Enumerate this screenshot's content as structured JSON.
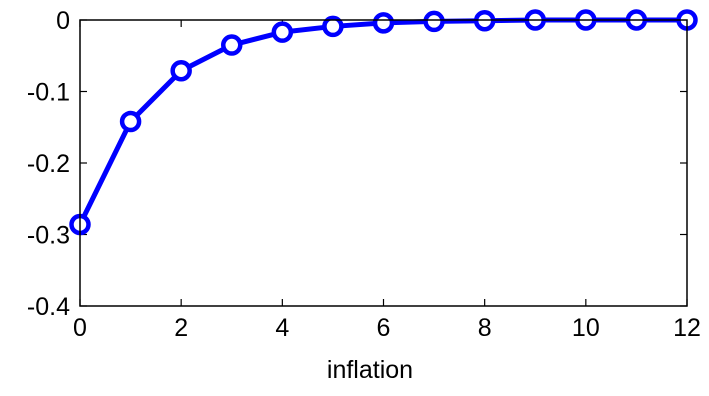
{
  "chart_data": {
    "type": "line",
    "title": "",
    "xlabel": "inflation",
    "ylabel": "",
    "xlim": [
      0,
      12
    ],
    "ylim": [
      -0.4,
      0
    ],
    "xticks": [
      0,
      2,
      4,
      6,
      8,
      10,
      12
    ],
    "xtick_labels": [
      "0",
      "2",
      "4",
      "6",
      "8",
      "10",
      "12"
    ],
    "yticks": [
      0,
      -0.1,
      -0.2,
      -0.3,
      -0.4
    ],
    "ytick_labels": [
      "0",
      "-0.1",
      "-0.2",
      "-0.3",
      "-0.4"
    ],
    "grid": false,
    "legend": "none",
    "series": [
      {
        "color": "#0000ff",
        "marker": "circle",
        "x": [
          0,
          1,
          2,
          3,
          4,
          5,
          6,
          7,
          8,
          9,
          10,
          11,
          12
        ],
        "values": [
          -0.286,
          -0.142,
          -0.071,
          -0.035,
          -0.017,
          -0.009,
          -0.004,
          -0.002,
          -0.001,
          0.0,
          0.0,
          0.0,
          0.0
        ]
      }
    ]
  }
}
